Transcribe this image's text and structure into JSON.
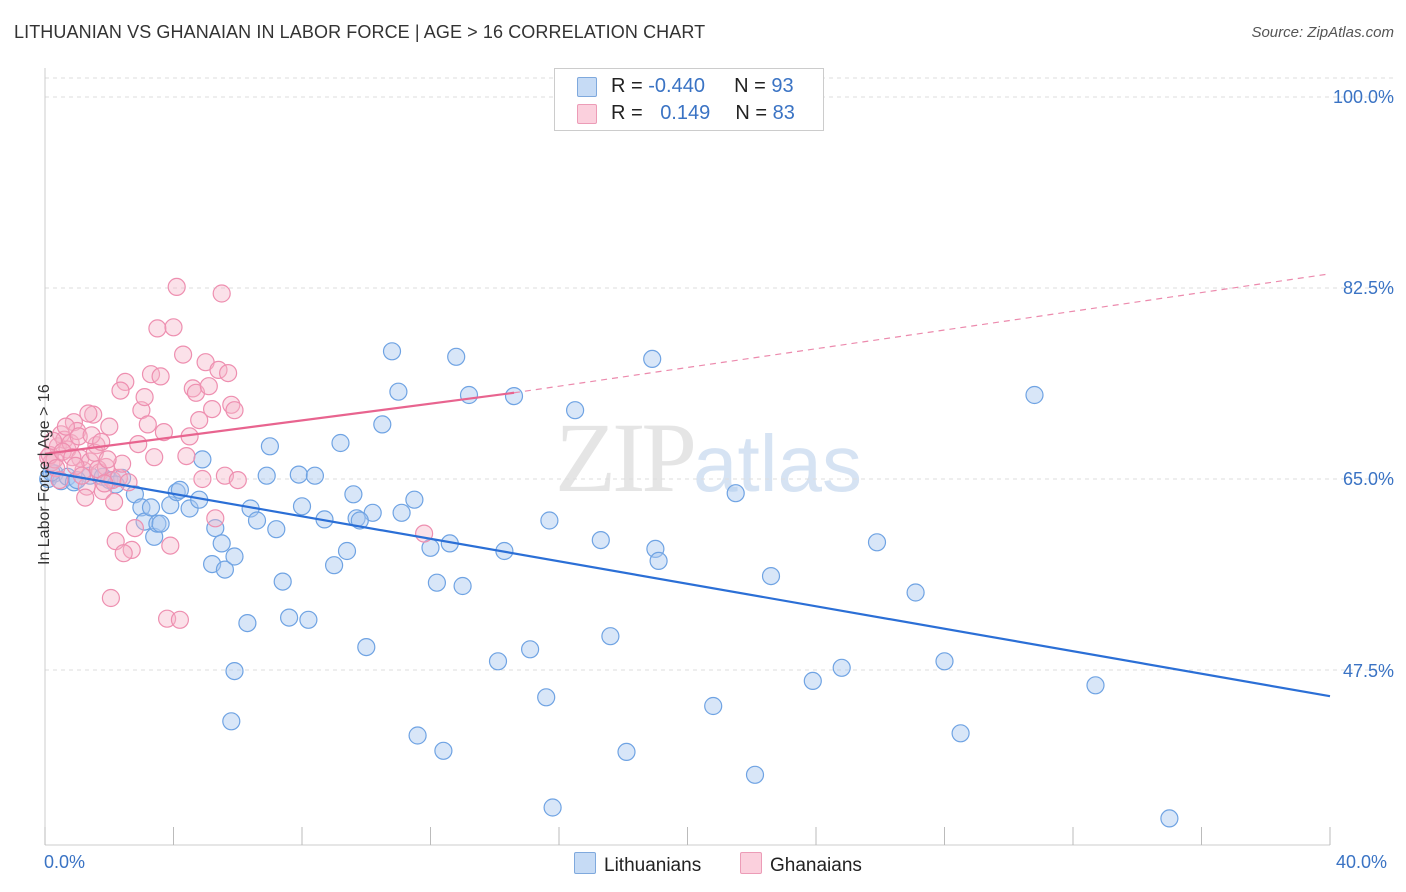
{
  "header": {
    "title": "LITHUANIAN VS GHANAIAN IN LABOR FORCE | AGE > 16 CORRELATION CHART",
    "source": "Source: ZipAtlas.com"
  },
  "watermark": {
    "zip": "ZIP",
    "atlas": "atlas"
  },
  "legend": {
    "rows": [
      {
        "r_label": "R = ",
        "r_value": "-0.440",
        "n_label": "N = ",
        "n_value": "93",
        "color": "#a9c8ef"
      },
      {
        "r_label": "R = ",
        "r_value": "0.149",
        "n_label": "N = ",
        "n_value": "83",
        "color": "#f5b3c8"
      }
    ]
  },
  "bottom_legend": {
    "series1": "Lithuanians",
    "series2": "Ghanaians"
  },
  "chart_data": {
    "type": "scatter",
    "title": "LITHUANIAN VS GHANAIAN IN LABOR FORCE | AGE > 16 CORRELATION CHART",
    "ylabel": "In Labor Force | Age > 16",
    "xlabel": "",
    "xlim": [
      0,
      40
    ],
    "ylim": [
      31,
      102
    ],
    "x_tick_labels": [
      "0.0%",
      "40.0%"
    ],
    "y_ticks": [
      47.5,
      65.0,
      82.5,
      100.0
    ],
    "y_tick_labels": [
      "47.5%",
      "65.0%",
      "82.5%",
      "100.0%"
    ],
    "grid": true,
    "legend_position": "top-center",
    "series": [
      {
        "name": "Lithuanians",
        "color": "#6fa3e3",
        "trend": {
          "x": [
            0,
            40
          ],
          "y": [
            65.7,
            45.1
          ],
          "style": "solid"
        },
        "points": [
          [
            0.1,
            65.0
          ],
          [
            0.3,
            65.5
          ],
          [
            0.5,
            64.8
          ],
          [
            0.7,
            65.2
          ],
          [
            0.9,
            64.7
          ],
          [
            1.4,
            65.3
          ],
          [
            1.8,
            65.2
          ],
          [
            2.0,
            64.9
          ],
          [
            2.4,
            65.1
          ],
          [
            2.8,
            63.6
          ],
          [
            3.0,
            62.4
          ],
          [
            3.1,
            61.1
          ],
          [
            3.3,
            62.4
          ],
          [
            3.4,
            59.7
          ],
          [
            3.5,
            60.9
          ],
          [
            3.9,
            62.6
          ],
          [
            4.1,
            63.8
          ],
          [
            4.2,
            64.0
          ],
          [
            4.5,
            62.3
          ],
          [
            4.8,
            63.1
          ],
          [
            4.9,
            66.8
          ],
          [
            5.2,
            57.2
          ],
          [
            5.3,
            60.5
          ],
          [
            5.5,
            59.1
          ],
          [
            5.6,
            56.7
          ],
          [
            5.9,
            57.9
          ],
          [
            5.9,
            47.4
          ],
          [
            5.8,
            42.8
          ],
          [
            6.3,
            51.8
          ],
          [
            6.4,
            62.3
          ],
          [
            6.6,
            61.2
          ],
          [
            6.9,
            65.3
          ],
          [
            7.0,
            68.0
          ],
          [
            7.2,
            60.4
          ],
          [
            7.4,
            55.6
          ],
          [
            7.6,
            52.3
          ],
          [
            7.9,
            65.4
          ],
          [
            8.0,
            62.5
          ],
          [
            8.2,
            52.1
          ],
          [
            8.4,
            65.3
          ],
          [
            8.7,
            61.3
          ],
          [
            9.0,
            57.1
          ],
          [
            9.2,
            68.3
          ],
          [
            9.4,
            58.4
          ],
          [
            9.6,
            63.6
          ],
          [
            9.7,
            61.4
          ],
          [
            10.0,
            49.6
          ],
          [
            10.2,
            61.9
          ],
          [
            10.5,
            70.0
          ],
          [
            10.8,
            76.7
          ],
          [
            11.0,
            73.0
          ],
          [
            11.1,
            61.9
          ],
          [
            11.5,
            63.1
          ],
          [
            11.6,
            41.5
          ],
          [
            12.0,
            58.7
          ],
          [
            12.2,
            55.5
          ],
          [
            12.4,
            40.1
          ],
          [
            12.6,
            59.1
          ],
          [
            12.8,
            76.2
          ],
          [
            13.0,
            55.2
          ],
          [
            13.2,
            72.7
          ],
          [
            14.1,
            48.3
          ],
          [
            14.3,
            58.4
          ],
          [
            14.6,
            72.6
          ],
          [
            15.1,
            49.4
          ],
          [
            15.6,
            45.0
          ],
          [
            15.7,
            61.2
          ],
          [
            15.8,
            34.9
          ],
          [
            16.5,
            71.3
          ],
          [
            17.3,
            59.4
          ],
          [
            17.6,
            50.6
          ],
          [
            18.1,
            40.0
          ],
          [
            18.9,
            76.0
          ],
          [
            19.0,
            58.6
          ],
          [
            19.1,
            57.5
          ],
          [
            20.8,
            44.2
          ],
          [
            21.5,
            63.7
          ],
          [
            22.1,
            37.9
          ],
          [
            22.6,
            56.1
          ],
          [
            23.9,
            46.5
          ],
          [
            24.8,
            47.7
          ],
          [
            25.9,
            59.2
          ],
          [
            27.1,
            54.6
          ],
          [
            28.0,
            48.3
          ],
          [
            28.5,
            41.7
          ],
          [
            30.8,
            72.7
          ],
          [
            32.7,
            46.1
          ],
          [
            35.0,
            33.9
          ],
          [
            0.2,
            65.6
          ],
          [
            1.0,
            64.9
          ],
          [
            2.2,
            64.5
          ],
          [
            3.6,
            60.9
          ],
          [
            9.8,
            61.2
          ]
        ]
      },
      {
        "name": "Ghanaians",
        "color": "#f199b8",
        "trend": {
          "x": [
            0,
            14.6
          ],
          "y": [
            67.3,
            72.9
          ],
          "style": "solid",
          "extended_to": [
            40,
            83.8
          ],
          "extended_style": "dashed"
        },
        "points": [
          [
            0.1,
            67.0
          ],
          [
            0.2,
            66.5
          ],
          [
            0.3,
            66.8
          ],
          [
            0.4,
            68.0
          ],
          [
            0.5,
            69.1
          ],
          [
            0.6,
            68.6
          ],
          [
            0.7,
            67.7
          ],
          [
            0.8,
            68.3
          ],
          [
            0.9,
            70.2
          ],
          [
            1.0,
            69.4
          ],
          [
            1.1,
            66.9
          ],
          [
            1.2,
            65.8
          ],
          [
            1.3,
            64.3
          ],
          [
            1.4,
            66.6
          ],
          [
            1.5,
            70.9
          ],
          [
            1.6,
            68.1
          ],
          [
            1.7,
            65.6
          ],
          [
            1.8,
            63.9
          ],
          [
            1.9,
            66.1
          ],
          [
            2.0,
            69.8
          ],
          [
            2.1,
            64.9
          ],
          [
            2.2,
            59.3
          ],
          [
            2.3,
            65.1
          ],
          [
            2.4,
            66.4
          ],
          [
            2.5,
            73.9
          ],
          [
            2.6,
            64.7
          ],
          [
            2.7,
            58.5
          ],
          [
            2.8,
            60.5
          ],
          [
            2.9,
            68.2
          ],
          [
            3.0,
            71.3
          ],
          [
            3.1,
            72.5
          ],
          [
            3.2,
            70.0
          ],
          [
            3.3,
            74.6
          ],
          [
            3.4,
            67.0
          ],
          [
            3.5,
            78.8
          ],
          [
            3.6,
            74.4
          ],
          [
            3.7,
            69.3
          ],
          [
            3.8,
            52.2
          ],
          [
            3.9,
            58.9
          ],
          [
            4.0,
            78.9
          ],
          [
            4.1,
            82.6
          ],
          [
            4.2,
            52.1
          ],
          [
            4.3,
            76.4
          ],
          [
            4.4,
            67.1
          ],
          [
            4.5,
            68.9
          ],
          [
            4.6,
            73.3
          ],
          [
            4.7,
            72.9
          ],
          [
            4.8,
            70.4
          ],
          [
            4.9,
            65.0
          ],
          [
            5.0,
            75.7
          ],
          [
            5.1,
            73.5
          ],
          [
            5.2,
            71.4
          ],
          [
            5.3,
            61.4
          ],
          [
            5.4,
            75.0
          ],
          [
            5.5,
            82.0
          ],
          [
            5.6,
            65.3
          ],
          [
            5.7,
            74.7
          ],
          [
            5.8,
            71.8
          ],
          [
            5.9,
            71.3
          ],
          [
            6.0,
            64.9
          ],
          [
            0.15,
            67.2
          ],
          [
            0.25,
            68.5
          ],
          [
            0.35,
            66.0
          ],
          [
            0.45,
            64.9
          ],
          [
            0.55,
            67.5
          ],
          [
            0.65,
            69.8
          ],
          [
            0.85,
            67.0
          ],
          [
            0.95,
            66.2
          ],
          [
            1.05,
            68.9
          ],
          [
            1.15,
            65.3
          ],
          [
            1.25,
            63.3
          ],
          [
            1.35,
            71.0
          ],
          [
            1.45,
            69.0
          ],
          [
            1.55,
            67.4
          ],
          [
            1.65,
            65.9
          ],
          [
            1.75,
            68.4
          ],
          [
            1.85,
            64.6
          ],
          [
            1.95,
            66.8
          ],
          [
            2.05,
            54.1
          ],
          [
            2.15,
            62.9
          ],
          [
            2.35,
            73.1
          ],
          [
            2.45,
            58.2
          ],
          [
            11.8,
            60.0
          ]
        ]
      }
    ]
  }
}
